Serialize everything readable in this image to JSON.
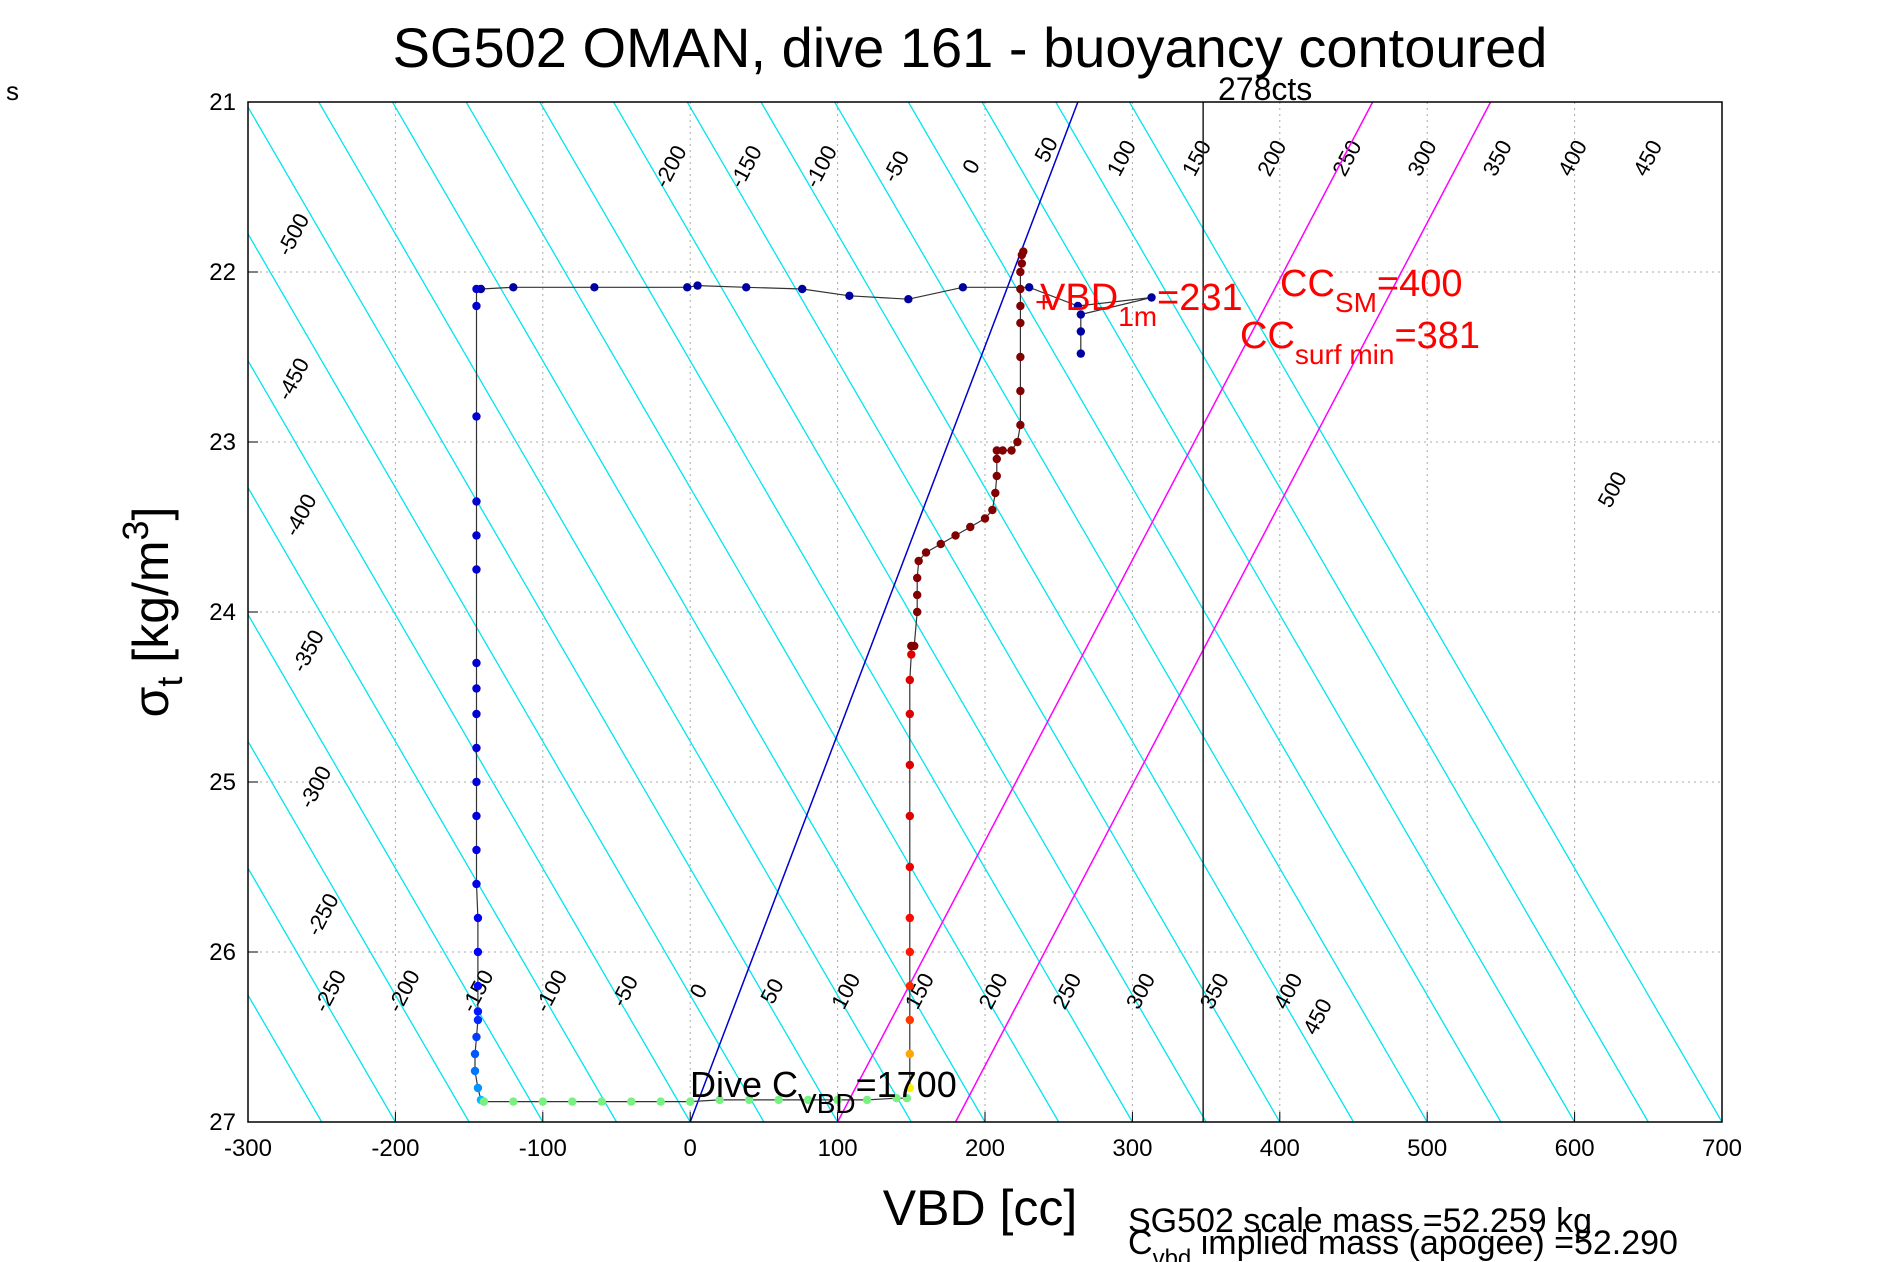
{
  "chart_data": {
    "type": "scatter",
    "title": "SG502 OMAN, dive 161 - buoyancy contoured",
    "xlabel": "VBD [cc]",
    "ylabel_main": "σ",
    "ylabel_sub": "t",
    "ylabel_unit": " [kg/m",
    "ylabel_sup": "3",
    "ylabel_close": "]",
    "corner_label": "s",
    "xlim": [
      -300,
      700
    ],
    "ylim": [
      21,
      27
    ],
    "y_reversed": true,
    "grid": true,
    "xticks": [
      "-300",
      "-200",
      "-100",
      "0",
      "100",
      "200",
      "300",
      "400",
      "500",
      "600",
      "700"
    ],
    "yticks": [
      "21",
      "22",
      "23",
      "24",
      "25",
      "26",
      "27"
    ],
    "contours": {
      "slope_cc_per_sigma": 67,
      "color": "#00e5ee",
      "upper_labels": [
        "-500",
        "-450",
        "-400",
        "-350",
        "-300",
        "-250",
        "-200",
        "-150",
        "-100",
        "-50",
        "0",
        "50",
        "100",
        "150",
        "200",
        "250",
        "300",
        "350",
        "400",
        "450",
        "500"
      ],
      "lower_labels": [
        "-250",
        "-200",
        "-150",
        "-100",
        "-50",
        "0",
        "50",
        "100",
        "150",
        "200",
        "250",
        "300",
        "350",
        "400",
        "450"
      ]
    },
    "neutral_line": {
      "color": "#0000cc",
      "x_at_27": 0,
      "x_at_21": 263
    },
    "magenta_lines": [
      {
        "color": "#ff00ff",
        "x_at_27": 100,
        "x_at_21": 463
      },
      {
        "color": "#ff00ff",
        "x_at_27": 180,
        "x_at_21": 543
      }
    ],
    "vertical_line": {
      "x": 348,
      "color": "#222222",
      "label": "278cts"
    },
    "dive_points": {
      "name": "dive",
      "x": [
        -145,
        -145,
        -145,
        -145,
        -145,
        -145,
        -145,
        -145,
        -145,
        -145,
        -145,
        -145,
        -145,
        -145,
        -144,
        -144,
        -144,
        -144,
        -144,
        -145,
        -146,
        -146,
        -144,
        -142,
        -140
      ],
      "y": [
        22.1,
        22.2,
        22.85,
        23.35,
        23.55,
        23.75,
        24.3,
        24.45,
        24.6,
        24.8,
        25.0,
        25.2,
        25.4,
        25.6,
        25.8,
        26.0,
        26.2,
        26.35,
        26.4,
        26.5,
        26.6,
        26.7,
        26.8,
        26.87,
        26.88
      ]
    },
    "bottom_points": {
      "name": "apogee",
      "x": [
        -140,
        -120,
        -100,
        -80,
        -60,
        -40,
        -20,
        0,
        20,
        40,
        60,
        80,
        100,
        120,
        140,
        147
      ],
      "y": [
        26.88,
        26.88,
        26.88,
        26.88,
        26.88,
        26.88,
        26.88,
        26.88,
        26.87,
        26.87,
        26.87,
        26.87,
        26.87,
        26.87,
        26.86,
        26.86
      ]
    },
    "climb_points": {
      "name": "climb",
      "x": [
        149,
        149,
        149,
        149,
        149,
        149,
        149,
        149,
        149,
        149,
        149,
        150,
        150,
        152,
        154,
        154,
        154,
        155,
        160,
        170,
        180,
        190,
        200,
        205,
        207,
        208,
        208,
        208,
        212,
        218,
        222,
        224,
        224,
        224,
        224,
        224,
        224,
        224,
        225,
        225,
        226
      ],
      "y": [
        26.8,
        26.6,
        26.4,
        26.2,
        26.0,
        25.8,
        25.5,
        25.2,
        24.9,
        24.6,
        24.4,
        24.25,
        24.2,
        24.2,
        24.0,
        23.9,
        23.8,
        23.7,
        23.65,
        23.6,
        23.55,
        23.5,
        23.45,
        23.4,
        23.3,
        23.2,
        23.1,
        23.05,
        23.05,
        23.05,
        23.0,
        22.9,
        22.7,
        22.5,
        22.3,
        22.2,
        22.1,
        22.0,
        21.95,
        21.9,
        21.88
      ]
    },
    "surface_points": {
      "name": "surface",
      "x": [
        -142,
        -120,
        -65,
        -2,
        5,
        38,
        76,
        108,
        148,
        185,
        230,
        263,
        313,
        265,
        265,
        265
      ],
      "y": [
        22.1,
        22.09,
        22.09,
        22.09,
        22.08,
        22.09,
        22.1,
        22.14,
        22.16,
        22.09,
        22.09,
        22.2,
        22.15,
        22.25,
        22.35,
        22.48
      ]
    },
    "annotations": {
      "vbd1m_main": "VBD",
      "vbd1m_sub": "1m",
      "vbd1m_tail": "=231",
      "ccsm_main": "CC",
      "ccsm_sub": "SM",
      "ccsm_tail": "=400",
      "ccsurf_main": "CC",
      "ccsurf_sub": "surf min",
      "ccsurf_tail": "=381",
      "dive_cvbd_main": "Dive C",
      "dive_cvbd_sub": "VBD",
      "dive_cvbd_tail": "=1700",
      "red_color": "#ff0000"
    },
    "footer": {
      "scale_mass": "SG502 scale mass =52.259 kg",
      "implied_main": "C",
      "implied_sub": "vbd",
      "implied_tail": " implied mass (apogee) =52.290"
    }
  }
}
